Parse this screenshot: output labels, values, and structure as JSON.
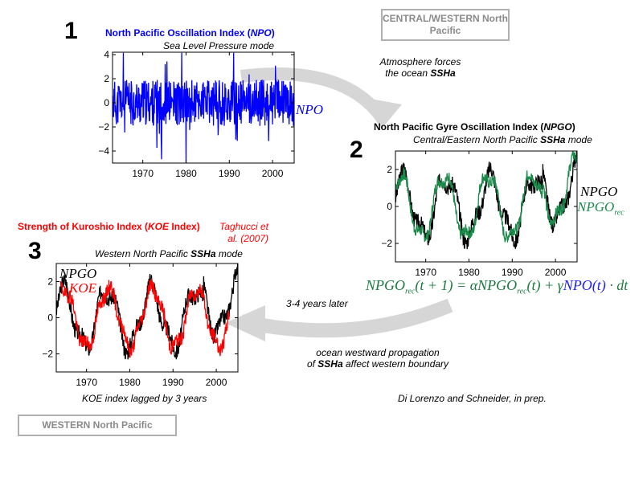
{
  "panels": {
    "p1": {
      "number": "1",
      "title_pre": "North Pacific Oscillation Index (",
      "title_it": "NPO",
      "title_post": ")",
      "subtitle": "Sea Level Pressure mode",
      "series_label": "NPO"
    },
    "p2": {
      "number": "2",
      "title_pre": "North Pacific Gyre Oscillation Index (",
      "title_it": "NPGO",
      "title_post": ")",
      "subtitle_pre": "Central/Eastern North Pacific ",
      "subtitle_bold": "SSHa",
      "subtitle_post": " mode",
      "label_a": "NPGO",
      "label_b": "NPGO",
      "label_b_sub": "rec"
    },
    "p3": {
      "number": "3",
      "title_red": "Strength of Kuroshio Index (",
      "title_it": "KOE",
      "title_red2": " Index)",
      "title_cite": "Taghucci et al. (2007)",
      "subtitle_pre": "Western North Pacific ",
      "subtitle_bold": "SSHa",
      "subtitle_post": " mode",
      "legend_a": "NPGO",
      "legend_b": "KOE",
      "caption": "KOE index lagged by 3 years"
    }
  },
  "boxes": {
    "central": "CENTRAL/WESTERN North Pacific",
    "western": "WESTERN North Pacific"
  },
  "notes": {
    "forces_l1": "Atmosphere forces",
    "forces_l2_pre": "the ocean ",
    "forces_l2_bold": "SSHa",
    "lag": "3-4 years later",
    "prop_l1": "ocean westward propagation",
    "prop_l2_pre": "of ",
    "prop_l2_bold": "SSHa",
    "prop_l2_post": " affect western boundary",
    "credit": "Di Lorenzo and Schneider, in prep."
  },
  "equation": {
    "lhs": "NPGO",
    "lhs_sub": "rec",
    "t1": "(t + 1) = αNPGO",
    "t1_sub": "rec",
    "t2": "(t) + γ",
    "npo": "NPO(t)",
    "t3": " · dt"
  },
  "colors": {
    "npo": "#0000ff",
    "npgo": "#000000",
    "npgo_rec": "#1a8a4a",
    "koe": "#ff0000",
    "box": "#b0b0b0",
    "arrow": "#d4d4d4"
  },
  "chart_data": [
    {
      "type": "line",
      "title": "North Pacific Oscillation Index (NPO)",
      "subtitle": "Sea Level Pressure mode",
      "x_ticks": [
        1970,
        1980,
        1990,
        2000
      ],
      "y_ticks": [
        4,
        2,
        0,
        -2,
        -4
      ],
      "xlim": [
        1963,
        2005
      ],
      "ylim": [
        -5,
        4.2
      ],
      "series": [
        {
          "name": "NPO",
          "color": "#0000ff",
          "x_start": 1963,
          "x_end": 2005,
          "seed": 11,
          "amp": 1.2,
          "trend": "noise"
        }
      ]
    },
    {
      "type": "line",
      "title": "North Pacific Gyre Oscillation Index (NPGO)",
      "subtitle": "Central/Eastern North Pacific SSHa mode",
      "x_ticks": [
        1970,
        1980,
        1990,
        2000
      ],
      "y_ticks": [
        2,
        0,
        -2
      ],
      "xlim": [
        1963,
        2005
      ],
      "ylim": [
        -3,
        3
      ],
      "series": [
        {
          "name": "NPGO",
          "color": "#000000",
          "x_start": 1963,
          "x_end": 2005,
          "seed": 3,
          "amp": 0.45,
          "trend": "npgo"
        },
        {
          "name": "NPGO rec",
          "color": "#1a8a4a",
          "x_start": 1963,
          "x_end": 2005,
          "seed": 7,
          "amp": 0.35,
          "trend": "npgo_rec"
        }
      ]
    },
    {
      "type": "line",
      "title": "Strength of Kuroshio Index (KOE Index)",
      "subtitle": "Western North Pacific SSHa mode",
      "x_ticks": [
        1970,
        1980,
        1990,
        2000
      ],
      "y_ticks": [
        2,
        0,
        -2
      ],
      "xlim": [
        1963,
        2005
      ],
      "ylim": [
        -3,
        3
      ],
      "series": [
        {
          "name": "NPGO",
          "color": "#000000",
          "x_start": 1963,
          "x_end": 2005,
          "seed": 3,
          "amp": 0.45,
          "trend": "npgo"
        },
        {
          "name": "KOE",
          "color": "#ff0000",
          "x_start": 1964,
          "x_end": 2003,
          "seed": 19,
          "amp": 0.4,
          "trend": "koe"
        }
      ]
    }
  ]
}
